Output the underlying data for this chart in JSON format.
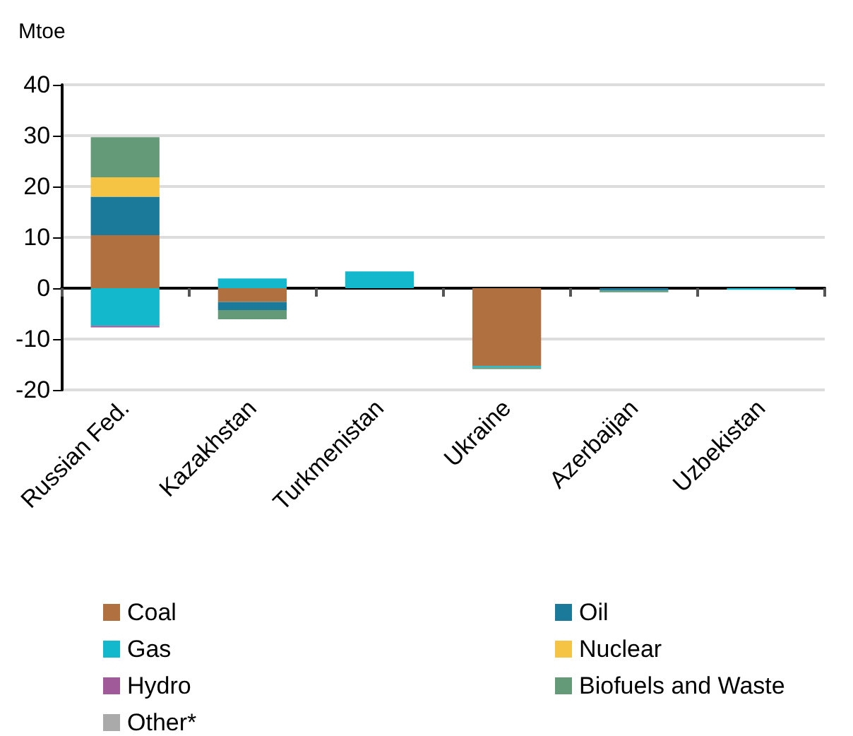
{
  "chart_data": {
    "type": "bar",
    "stacked": true,
    "ylabel": "Mtoe",
    "categories": [
      "Russian Fed.",
      "Kazakhstan",
      "Turkmenistan",
      "Ukraine",
      "Azerbaijan",
      "Uzbekistan"
    ],
    "series": [
      {
        "name": "Coal",
        "color": "#b07040",
        "values": [
          10.4,
          -2.7,
          null,
          -15.3,
          null,
          null
        ]
      },
      {
        "name": "Oil",
        "color": "#1b7a99",
        "values": [
          7.6,
          -1.6,
          null,
          null,
          -0.5,
          null
        ]
      },
      {
        "name": "Gas",
        "color": "#13b8cc",
        "values": [
          -7.4,
          1.9,
          3.3,
          -0.3,
          null,
          -0.3
        ]
      },
      {
        "name": "Nuclear",
        "color": "#f6c445",
        "values": [
          3.8,
          null,
          null,
          null,
          null,
          null
        ]
      },
      {
        "name": "Hydro",
        "color": "#a05a9a",
        "values": [
          -0.3,
          null,
          null,
          null,
          null,
          null
        ]
      },
      {
        "name": "Biofuels and Waste",
        "color": "#659a78",
        "values": [
          7.9,
          -1.8,
          null,
          -0.3,
          -0.3,
          null
        ]
      },
      {
        "name": "Other*",
        "color": "#aaaaaa",
        "values": [
          null,
          null,
          null,
          null,
          null,
          null
        ]
      }
    ],
    "ylim": [
      -20,
      40
    ],
    "yticks": [
      -20,
      -10,
      0,
      10,
      20,
      30,
      40
    ],
    "grid": "y",
    "legend": "bottom"
  }
}
